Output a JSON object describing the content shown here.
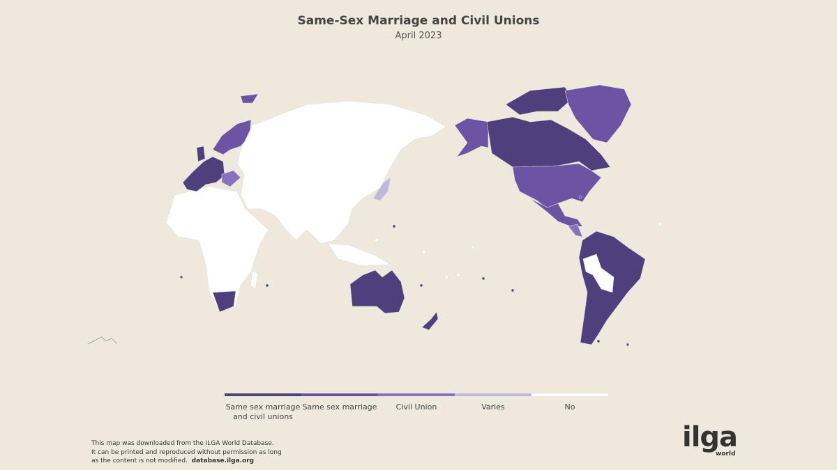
{
  "header": {
    "title": "Same-Sex Marriage and Civil Unions",
    "subtitle": "April 2023"
  },
  "legend": [
    {
      "label": "Same sex marriage and civil unions",
      "color": "#503f7d"
    },
    {
      "label": "Same sex marriage",
      "color": "#6c53a3"
    },
    {
      "label": "Civil Union",
      "color": "#8a70c0"
    },
    {
      "label": "Varies",
      "color": "#c3b7de"
    },
    {
      "label": "No",
      "color": "#ffffff"
    }
  ],
  "footer": {
    "lines": [
      "This map was downloaded from the ILGA World Database.",
      "It can be printed and reproduced without permission as long",
      "as the content is not modified."
    ],
    "link": "database.ilga.org"
  },
  "logo": {
    "name": "ilga",
    "sub": "world"
  }
}
